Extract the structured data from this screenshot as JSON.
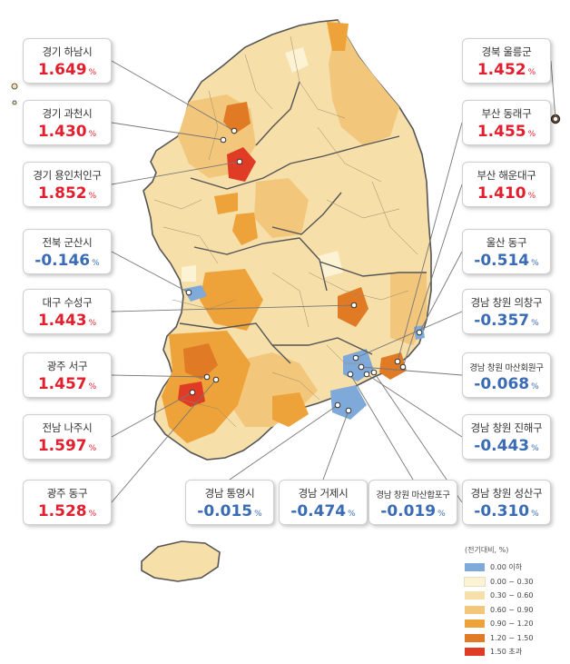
{
  "colors": {
    "up": "#e0202e",
    "down": "#3a6bb5",
    "border": "#555555",
    "sea_island_fill": "#e9d0a0"
  },
  "legend": {
    "title": "(전기대비, %)",
    "items": [
      {
        "label": "0.00 이하",
        "color": "#7fa9d8"
      },
      {
        "label": "0.00 ~ 0.30",
        "color": "#fbf3d4"
      },
      {
        "label": "0.30 ~ 0.60",
        "color": "#f6dfa9"
      },
      {
        "label": "0.60 ~ 0.90",
        "color": "#f2c77c"
      },
      {
        "label": "0.90 ~ 1.20",
        "color": "#eda23a"
      },
      {
        "label": "1.20 ~ 1.50",
        "color": "#e07a25"
      },
      {
        "label": "1.50 초과",
        "color": "#e03b25"
      }
    ]
  },
  "cards": [
    {
      "id": "gyeonggi-hanam",
      "name": "경기 하남시",
      "value": "1.649",
      "unit": "%",
      "dir": "up"
    },
    {
      "id": "gyeonggi-gwacheon",
      "name": "경기 과천시",
      "value": "1.430",
      "unit": "%",
      "dir": "up"
    },
    {
      "id": "gyeonggi-yongin-cheoin",
      "name": "경기 용인처인구",
      "value": "1.852",
      "unit": "%",
      "dir": "up"
    },
    {
      "id": "jeonbuk-gunsan",
      "name": "전북 군산시",
      "value": "-0.146",
      "unit": "%",
      "dir": "down"
    },
    {
      "id": "daegu-suseong",
      "name": "대구 수성구",
      "value": "1.443",
      "unit": "%",
      "dir": "up"
    },
    {
      "id": "gwangju-seo",
      "name": "광주 서구",
      "value": "1.457",
      "unit": "%",
      "dir": "up"
    },
    {
      "id": "jeonnam-naju",
      "name": "전남 나주시",
      "value": "1.597",
      "unit": "%",
      "dir": "up"
    },
    {
      "id": "gwangju-dong",
      "name": "광주 동구",
      "value": "1.528",
      "unit": "%",
      "dir": "up"
    },
    {
      "id": "gyeongbuk-ulleung",
      "name": "경북 울릉군",
      "value": "1.452",
      "unit": "%",
      "dir": "up"
    },
    {
      "id": "busan-dongnae",
      "name": "부산 동래구",
      "value": "1.455",
      "unit": "%",
      "dir": "up"
    },
    {
      "id": "busan-haeundae",
      "name": "부산 해운대구",
      "value": "1.410",
      "unit": "%",
      "dir": "up"
    },
    {
      "id": "ulsan-dong",
      "name": "울산 동구",
      "value": "-0.514",
      "unit": "%",
      "dir": "down"
    },
    {
      "id": "changwon-uichang",
      "name": "경남 창원 의창구",
      "value": "-0.357",
      "unit": "%",
      "dir": "down"
    },
    {
      "id": "changwon-masanhoewon",
      "name": "경남 창원 마산회원구",
      "value": "-0.068",
      "unit": "%",
      "dir": "down"
    },
    {
      "id": "changwon-jinhae",
      "name": "경남 창원 진해구",
      "value": "-0.443",
      "unit": "%",
      "dir": "down"
    },
    {
      "id": "changwon-seongsan",
      "name": "경남 창원 성산구",
      "value": "-0.310",
      "unit": "%",
      "dir": "down"
    },
    {
      "id": "gyeongnam-tongyeong",
      "name": "경남 통영시",
      "value": "-0.015",
      "unit": "%",
      "dir": "down"
    },
    {
      "id": "gyeongnam-geoje",
      "name": "경남 거제시",
      "value": "-0.474",
      "unit": "%",
      "dir": "down"
    },
    {
      "id": "changwon-masanhappo",
      "name": "경남 창원 마산합포구",
      "value": "-0.019",
      "unit": "%",
      "dir": "down"
    }
  ]
}
